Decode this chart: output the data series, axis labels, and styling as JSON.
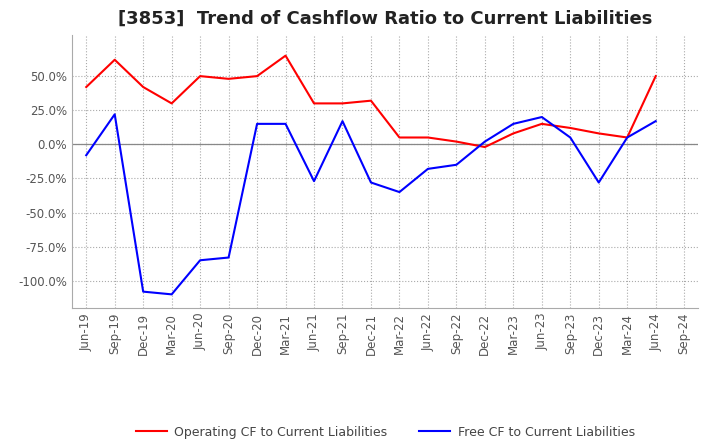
{
  "title": "[3853]  Trend of Cashflow Ratio to Current Liabilities",
  "x_labels": [
    "Jun-19",
    "Sep-19",
    "Dec-19",
    "Mar-20",
    "Jun-20",
    "Sep-20",
    "Dec-20",
    "Mar-21",
    "Jun-21",
    "Sep-21",
    "Dec-21",
    "Mar-22",
    "Jun-22",
    "Sep-22",
    "Dec-22",
    "Mar-23",
    "Jun-23",
    "Sep-23",
    "Dec-23",
    "Mar-24",
    "Jun-24",
    "Sep-24"
  ],
  "operating_cf": [
    42.0,
    62.0,
    42.0,
    30.0,
    50.0,
    48.0,
    50.0,
    65.0,
    30.0,
    30.0,
    32.0,
    5.0,
    5.0,
    2.0,
    -2.0,
    8.0,
    15.0,
    12.0,
    8.0,
    5.0,
    50.0,
    null
  ],
  "free_cf": [
    -8.0,
    22.0,
    -108.0,
    -110.0,
    -85.0,
    -83.0,
    15.0,
    15.0,
    -27.0,
    17.0,
    -28.0,
    -35.0,
    -18.0,
    -15.0,
    2.0,
    15.0,
    20.0,
    5.0,
    -28.0,
    5.0,
    17.0,
    null
  ],
  "ylim": [
    -120,
    80
  ],
  "yticks": [
    50.0,
    25.0,
    0.0,
    -25.0,
    -50.0,
    -75.0,
    -100.0
  ],
  "operating_color": "#ff0000",
  "free_color": "#0000ff",
  "grid_color": "#aaaaaa",
  "background_color": "#ffffff",
  "title_fontsize": 13,
  "legend_fontsize": 9,
  "tick_fontsize": 8.5
}
